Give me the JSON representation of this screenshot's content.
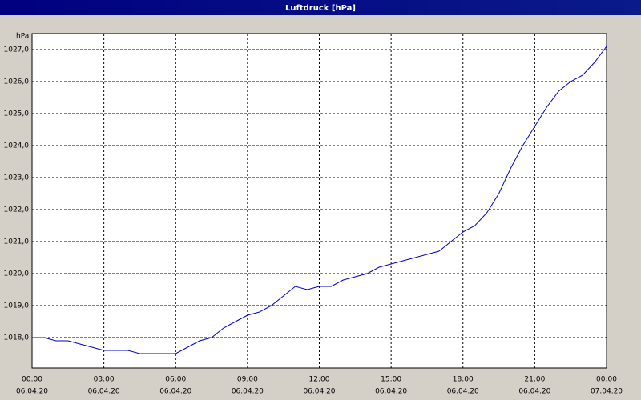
{
  "chart_data": {
    "type": "line",
    "title": "Luftdruck [hPa]",
    "y_label": "hPa",
    "color": "#0000cc",
    "grid": true,
    "x": [
      0,
      0.5,
      1,
      1.5,
      2,
      2.5,
      3,
      3.5,
      4,
      4.5,
      5,
      5.5,
      6,
      6.5,
      7,
      7.5,
      8,
      8.5,
      9,
      9.5,
      10,
      10.5,
      11,
      11.5,
      12,
      12.5,
      13,
      13.5,
      14,
      14.5,
      15,
      15.5,
      16,
      16.5,
      17,
      17.5,
      18,
      18.5,
      19,
      19.5,
      20,
      20.5,
      21,
      21.5,
      22,
      22.5,
      23,
      23.5,
      24
    ],
    "values": [
      1018.0,
      1018.0,
      1017.9,
      1017.9,
      1017.8,
      1017.7,
      1017.6,
      1017.6,
      1017.6,
      1017.5,
      1017.5,
      1017.5,
      1017.5,
      1017.7,
      1017.9,
      1018.0,
      1018.3,
      1018.5,
      1018.7,
      1018.8,
      1019.0,
      1019.3,
      1019.6,
      1019.5,
      1019.6,
      1019.6,
      1019.8,
      1019.9,
      1020.0,
      1020.2,
      1020.3,
      1020.4,
      1020.5,
      1020.6,
      1020.7,
      1021.0,
      1021.3,
      1021.5,
      1021.9,
      1022.5,
      1023.3,
      1024.0,
      1024.6,
      1025.2,
      1025.7,
      1026.0,
      1026.2,
      1026.6,
      1027.1
    ],
    "xlim": [
      0,
      24
    ],
    "xticks": [
      {
        "value": 0,
        "label": "00:00",
        "date": "06.04.20"
      },
      {
        "value": 3,
        "label": "03:00",
        "date": "06.04.20"
      },
      {
        "value": 6,
        "label": "06:00",
        "date": "06.04.20"
      },
      {
        "value": 9,
        "label": "09:00",
        "date": "06.04.20"
      },
      {
        "value": 12,
        "label": "12:00",
        "date": "06.04.20"
      },
      {
        "value": 15,
        "label": "15:00",
        "date": "06.04.20"
      },
      {
        "value": 18,
        "label": "18:00",
        "date": "06.04.20"
      },
      {
        "value": 21,
        "label": "21:00",
        "date": "06.04.20"
      },
      {
        "value": 24,
        "label": "00:00",
        "date": "07.04.20"
      }
    ],
    "ylim": [
      1017.05,
      1027.5
    ],
    "yticks": [
      {
        "value": 1018,
        "label": "1018,0"
      },
      {
        "value": 1019,
        "label": "1019,0"
      },
      {
        "value": 1020,
        "label": "1020,0"
      },
      {
        "value": 1021,
        "label": "1021,0"
      },
      {
        "value": 1022,
        "label": "1022,0"
      },
      {
        "value": 1023,
        "label": "1023,0"
      },
      {
        "value": 1024,
        "label": "1024,0"
      },
      {
        "value": 1025,
        "label": "1025,0"
      },
      {
        "value": 1026,
        "label": "1026,0"
      },
      {
        "value": 1027,
        "label": "1027,0"
      }
    ]
  }
}
